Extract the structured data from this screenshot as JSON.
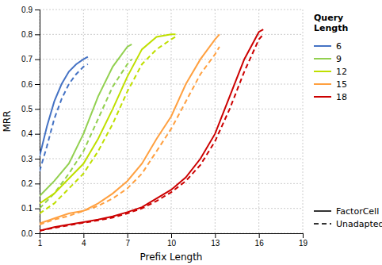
{
  "chart_data": {
    "type": "line",
    "xlabel": "Prefix Length",
    "ylabel": "MRR",
    "xlim": [
      1,
      19
    ],
    "ylim": [
      0,
      0.9
    ],
    "xticks": [
      1,
      4,
      7,
      10,
      13,
      16,
      19
    ],
    "yticks": [
      {
        "value": 0.0,
        "label": "0.0"
      },
      0.1,
      0.2,
      0.3,
      0.4,
      0.5,
      0.6,
      0.7,
      0.8,
      0.9
    ],
    "grid": true,
    "legend": "right",
    "legend_title": "Query\nLength",
    "methods": [
      {
        "name": "FactorCell",
        "line_style": "solid"
      },
      {
        "name": "Unadapted",
        "line_style": "dashed"
      }
    ],
    "series": [
      {
        "name": "6",
        "color": "#4472C4",
        "lines": [
          {
            "x": [
              1,
              1.5,
              2,
              2.5,
              3,
              3.5,
              4,
              4.3
            ],
            "values": [
              0.31,
              0.43,
              0.53,
              0.6,
              0.65,
              0.68,
              0.7,
              0.71
            ]
          },
          {
            "x": [
              1,
              1.5,
              2,
              2.5,
              3,
              3.5,
              4,
              4.3
            ],
            "values": [
              0.25,
              0.35,
              0.46,
              0.54,
              0.6,
              0.64,
              0.67,
              0.68
            ]
          }
        ]
      },
      {
        "name": "9",
        "color": "#92D050",
        "lines": [
          {
            "x": [
              1,
              2,
              3,
              4,
              5,
              6,
              7,
              7.3
            ],
            "values": [
              0.15,
              0.21,
              0.28,
              0.4,
              0.55,
              0.67,
              0.75,
              0.76
            ]
          },
          {
            "x": [
              1,
              2,
              3,
              4,
              5,
              6,
              7,
              7.3
            ],
            "values": [
              0.1,
              0.16,
              0.24,
              0.33,
              0.46,
              0.59,
              0.68,
              0.7
            ]
          }
        ]
      },
      {
        "name": "12",
        "color": "#BFDF00",
        "lines": [
          {
            "x": [
              1,
              2,
              3,
              4,
              5,
              6,
              7,
              8,
              9,
              10,
              10.3
            ],
            "values": [
              0.12,
              0.16,
              0.22,
              0.28,
              0.38,
              0.5,
              0.63,
              0.74,
              0.79,
              0.8,
              0.8
            ]
          },
          {
            "x": [
              1,
              2,
              3,
              4,
              5,
              6,
              7,
              8,
              9,
              10,
              10.3
            ],
            "values": [
              0.08,
              0.12,
              0.18,
              0.24,
              0.33,
              0.44,
              0.57,
              0.68,
              0.74,
              0.78,
              0.79
            ]
          }
        ]
      },
      {
        "name": "15",
        "color": "#FFA040",
        "lines": [
          {
            "x": [
              1,
              2,
              3,
              4,
              5,
              6,
              7,
              8,
              9,
              10,
              11,
              12,
              13,
              13.3
            ],
            "values": [
              0.04,
              0.06,
              0.08,
              0.09,
              0.12,
              0.16,
              0.21,
              0.28,
              0.38,
              0.47,
              0.6,
              0.7,
              0.78,
              0.8
            ]
          },
          {
            "x": [
              1,
              2,
              3,
              4,
              5,
              6,
              7,
              8,
              9,
              10,
              11,
              12,
              13,
              13.3
            ],
            "values": [
              0.035,
              0.055,
              0.07,
              0.09,
              0.11,
              0.14,
              0.18,
              0.24,
              0.33,
              0.42,
              0.53,
              0.64,
              0.72,
              0.75
            ]
          }
        ]
      },
      {
        "name": "18",
        "color": "#CC0000",
        "lines": [
          {
            "x": [
              1,
              2,
              3,
              4,
              5,
              6,
              7,
              8,
              9,
              10,
              11,
              12,
              13,
              14,
              15,
              16,
              16.3
            ],
            "values": [
              0.01,
              0.025,
              0.035,
              0.045,
              0.055,
              0.068,
              0.085,
              0.105,
              0.14,
              0.175,
              0.225,
              0.3,
              0.4,
              0.55,
              0.7,
              0.81,
              0.82
            ]
          },
          {
            "x": [
              1,
              2,
              3,
              4,
              5,
              6,
              7,
              8,
              9,
              10,
              11,
              12,
              13,
              14,
              15,
              16,
              16.3
            ],
            "values": [
              0.01,
              0.022,
              0.032,
              0.042,
              0.052,
              0.063,
              0.08,
              0.1,
              0.13,
              0.165,
              0.21,
              0.275,
              0.37,
              0.5,
              0.65,
              0.78,
              0.8
            ]
          }
        ]
      }
    ]
  }
}
